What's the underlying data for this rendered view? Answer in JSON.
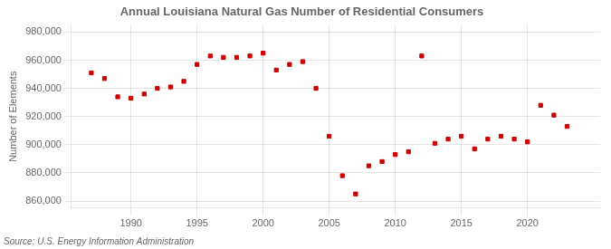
{
  "chart_data": {
    "type": "scatter",
    "title": "Annual Louisiana Natural Gas Number of Residential Consumers",
    "ylabel": "Number of Elements",
    "annotations": [
      "Source: U.S. Energy Information Administration"
    ],
    "x": [
      1987,
      1988,
      1989,
      1990,
      1991,
      1992,
      1993,
      1994,
      1995,
      1996,
      1997,
      1998,
      1999,
      2000,
      2001,
      2002,
      2003,
      2004,
      2005,
      2006,
      2007,
      2008,
      2009,
      2010,
      2011,
      2012,
      2013,
      2014,
      2015,
      2016,
      2017,
      2018,
      2019,
      2020,
      2021,
      2022,
      2023
    ],
    "values": [
      951000,
      947000,
      934000,
      933000,
      936000,
      940000,
      941000,
      945000,
      957000,
      963000,
      962000,
      962000,
      963000,
      965000,
      953000,
      957000,
      959000,
      940000,
      906000,
      878000,
      865000,
      885000,
      888000,
      893000,
      895000,
      963000,
      901000,
      904000,
      906000,
      897000,
      904000,
      906000,
      904000,
      902000,
      928000,
      921000,
      913000
    ],
    "color": "#cc0000",
    "marker": "square",
    "xlim": [
      1985.5,
      2025.5
    ],
    "ylim": [
      855000,
      985000
    ],
    "xticks": [
      1990,
      1995,
      2000,
      2005,
      2010,
      2015,
      2020
    ],
    "yticks": [
      {
        "value": 860000,
        "label": "860,000"
      },
      {
        "value": 880000,
        "label": "880,000"
      },
      {
        "value": 900000,
        "label": "900,000"
      },
      {
        "value": 920000,
        "label": "920,000"
      },
      {
        "value": 940000,
        "label": "940,000"
      },
      {
        "value": 960000,
        "label": "960,000"
      },
      {
        "value": 980000,
        "label": "980,000"
      }
    ],
    "grid": true
  }
}
